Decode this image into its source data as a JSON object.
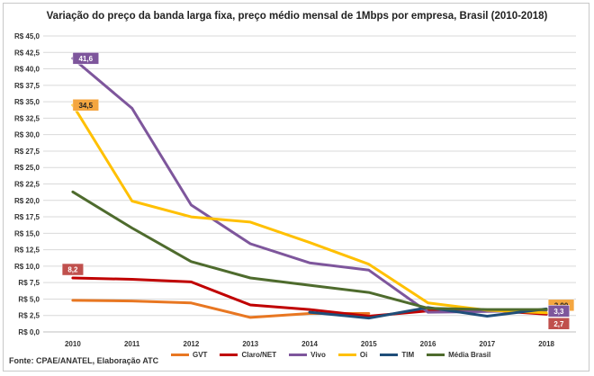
{
  "chart_data": {
    "type": "line",
    "title": "Variação do preço da banda larga fixa, preço médio mensal de 1Mbps por empresa, Brasil (2010-2018)",
    "x": [
      "2010",
      "2011",
      "2012",
      "2013",
      "2014",
      "2015",
      "2016",
      "2017",
      "2018"
    ],
    "ylim": [
      0,
      45
    ],
    "yticks": [
      "R$ 0,0",
      "R$ 2,5",
      "R$ 5,0",
      "R$ 7,5",
      "R$ 10,0",
      "R$ 12,5",
      "R$ 15,0",
      "R$ 17,5",
      "R$ 20,0",
      "R$ 22,5",
      "R$ 25,0",
      "R$ 27,5",
      "R$ 30,0",
      "R$ 32,5",
      "R$ 35,0",
      "R$ 37,5",
      "R$ 40,0",
      "R$ 42,5",
      "R$ 45,0"
    ],
    "grid": true,
    "series": [
      {
        "name": "GVT",
        "color": "#e87722",
        "values": [
          4.8,
          4.7,
          4.4,
          2.2,
          2.8,
          2.8,
          null,
          null,
          null
        ]
      },
      {
        "name": "Claro/NET",
        "color": "#c00000",
        "values": [
          8.2,
          8.0,
          7.6,
          4.1,
          3.4,
          2.4,
          3.2,
          3.3,
          2.7
        ]
      },
      {
        "name": "Vivo",
        "color": "#7e569c",
        "values": [
          41.6,
          34.0,
          19.3,
          13.4,
          10.5,
          9.4,
          3.0,
          3.1,
          3.3
        ]
      },
      {
        "name": "Oi",
        "color": "#ffc000",
        "values": [
          34.5,
          19.9,
          17.5,
          16.7,
          13.6,
          10.3,
          4.4,
          3.3,
          2.9
        ]
      },
      {
        "name": "TIM",
        "color": "#1f4e79",
        "values": [
          null,
          null,
          null,
          null,
          3.0,
          2.1,
          3.7,
          2.4,
          3.5
        ]
      },
      {
        "name": "Média Brasil",
        "color": "#4e6b2d",
        "values": [
          21.3,
          15.8,
          10.7,
          8.2,
          7.1,
          6.0,
          3.6,
          3.4,
          3.4
        ]
      }
    ],
    "data_labels": [
      {
        "series": "Vivo",
        "index": 0,
        "text": "41,6",
        "bg": "#7e569c",
        "fg": "#ffffff"
      },
      {
        "series": "Oi",
        "index": 0,
        "text": "34,5",
        "bg": "#f4a640",
        "fg": "#222222"
      },
      {
        "series": "Claro/NET",
        "index": 0,
        "text": "8,2",
        "bg": "#c0504d",
        "fg": "#ffffff"
      },
      {
        "series": "Oi",
        "index": 8,
        "text": "2,90",
        "bg": "#f4a640",
        "fg": "#222222"
      },
      {
        "series": "Vivo",
        "index": 8,
        "text": "3,3",
        "bg": "#7e569c",
        "fg": "#ffffff"
      },
      {
        "series": "Claro/NET",
        "index": 8,
        "text": "2,7",
        "bg": "#c0504d",
        "fg": "#ffffff"
      }
    ],
    "source": "Fonte: CPAE/ANATEL, Elaboração ATC"
  }
}
